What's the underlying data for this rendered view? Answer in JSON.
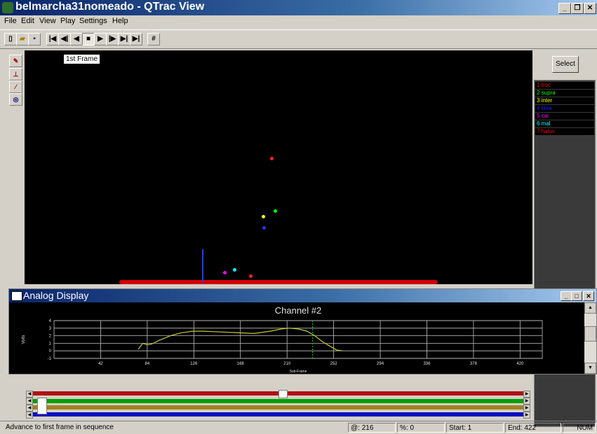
{
  "window": {
    "title": "belmarcha31nomeado - QTrac View"
  },
  "menu": [
    "File",
    "Edit",
    "View",
    "Play",
    "Settings",
    "Help"
  ],
  "toolbar": {
    "buttons": [
      "new",
      "open",
      "save",
      "first-frame",
      "step-back",
      "play-reverse",
      "stop",
      "play",
      "step-forward",
      "last-frame",
      "frame-number"
    ]
  },
  "view": {
    "frame_label": "1st Frame"
  },
  "markers_panel": {
    "select_label": "Select",
    "markers": [
      {
        "label": "1 troc",
        "color": "#ff0000"
      },
      {
        "label": "2 supra",
        "color": "#00ff00"
      },
      {
        "label": "3 inter",
        "color": "#ffff00"
      },
      {
        "label": "4 tibia",
        "color": "#2020ff"
      },
      {
        "label": "5 cal",
        "color": "#ff00ff"
      },
      {
        "label": "6 mal",
        "color": "#00ffff"
      },
      {
        "label": "7 halux",
        "color": "#ff0000"
      }
    ]
  },
  "analog": {
    "title": "Analog Display",
    "chart_data": {
      "type": "line",
      "title": "Channel #2",
      "xlabel": "Sub-Frame",
      "ylabel": "Volts",
      "xlim": [
        0,
        440
      ],
      "ylim": [
        -1,
        4
      ],
      "xticks": [
        42,
        84,
        126,
        168,
        210,
        252,
        294,
        336,
        378,
        420
      ],
      "yticks": [
        -1,
        0,
        1,
        2,
        3,
        4
      ],
      "grid": true,
      "series": [
        {
          "color": "#c8c832",
          "x": [
            76,
            80,
            84,
            88,
            95,
            105,
            115,
            125,
            135,
            150,
            165,
            180,
            195,
            205,
            212,
            220,
            228,
            235,
            242,
            250,
            255,
            260
          ],
          "y": [
            0.2,
            1.0,
            0.8,
            0.9,
            1.4,
            2.0,
            2.4,
            2.6,
            2.6,
            2.5,
            2.4,
            2.3,
            2.6,
            2.9,
            3.0,
            2.9,
            2.6,
            2.0,
            1.2,
            0.5,
            0.1,
            0.0
          ]
        }
      ],
      "current_x": 233
    }
  },
  "status": {
    "message": "Advance to first frame in sequence",
    "frame": "@: 216",
    "percent": "%: 0",
    "start": "Start: 1",
    "end": "End: 422",
    "num": "NUM"
  }
}
